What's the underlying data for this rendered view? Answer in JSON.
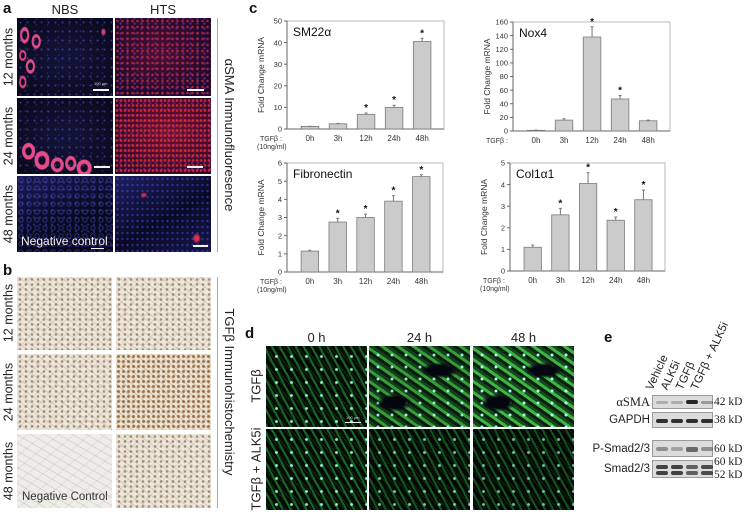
{
  "panel_a": {
    "label": "a",
    "columns": [
      "NBS",
      "HTS"
    ],
    "rows": [
      "12 months",
      "24 months",
      "48 months"
    ],
    "side_title": "αSMA Immunofluoresence",
    "negative_control": "Negative control",
    "scale_bar": "100 µm"
  },
  "panel_b": {
    "label": "b",
    "rows": [
      "12 months",
      "24 months",
      "48 months"
    ],
    "side_title": "TGFβ Immunohistochemistry",
    "negative_control": "Negative Control"
  },
  "panel_c": {
    "label": "c"
  },
  "panel_d": {
    "label": "d",
    "columns": [
      "0 h",
      "24 h",
      "48 h"
    ],
    "rows": [
      "TGFβ",
      "TGFβ + ALK5i"
    ],
    "scale_bar": "100 µm"
  },
  "panel_e": {
    "label": "e",
    "lanes": [
      "Vehicle",
      "ALK5i",
      "TGFβ",
      "TGFβ + ALK5i"
    ],
    "blots": [
      {
        "name": "αSMA",
        "kd": [
          "42 kD"
        ],
        "band_intensity": [
          0.25,
          0.25,
          0.95,
          0.35
        ]
      },
      {
        "name": "GAPDH",
        "kd": [
          "38 kD"
        ],
        "band_intensity": [
          0.9,
          0.9,
          0.9,
          0.9
        ]
      },
      {
        "name": "P-Smad2/3",
        "kd": [
          "60 kD"
        ],
        "band_intensity": [
          0.4,
          0.3,
          0.6,
          0.4
        ]
      },
      {
        "name": "Smad2/3",
        "kd": [
          "60 kD",
          "52 kD"
        ],
        "band_intensity": [
          0.8,
          0.8,
          0.65,
          0.75
        ]
      }
    ]
  },
  "chart_data": [
    {
      "type": "bar",
      "title": "SM22α",
      "categories": [
        "0h",
        "3h",
        "12h",
        "24h",
        "48h"
      ],
      "values": [
        1.2,
        2.4,
        6.8,
        10.0,
        40.5
      ],
      "errors": [
        0.1,
        0.2,
        0.6,
        1.0,
        1.5
      ],
      "significant": [
        false,
        false,
        true,
        true,
        true
      ],
      "xlabel": "TGFβ :",
      "xlabel_sub": "(10ng/ml)",
      "ylabel": "Fold Change mRNA",
      "ylim": [
        0,
        50
      ],
      "yticks": [
        0,
        10,
        20,
        30,
        40,
        50
      ]
    },
    {
      "type": "bar",
      "title": "Nox4",
      "categories": [
        "0h",
        "3h",
        "12h",
        "24h",
        "48h"
      ],
      "values": [
        1,
        16,
        138,
        47,
        15
      ],
      "errors": [
        0.3,
        2,
        15,
        5,
        1
      ],
      "significant": [
        false,
        false,
        true,
        true,
        false
      ],
      "xlabel": "TGFβ :",
      "xlabel_sub": "",
      "ylabel": "Fold Change mRNA",
      "ylim": [
        0,
        160
      ],
      "yticks": [
        0,
        20,
        40,
        60,
        80,
        100,
        120,
        140,
        160
      ]
    },
    {
      "type": "bar",
      "title": "Fibronectin",
      "categories": [
        "0h",
        "3h",
        "12h",
        "24h",
        "48h"
      ],
      "values": [
        1.15,
        2.75,
        3.0,
        3.9,
        5.25
      ],
      "errors": [
        0.05,
        0.2,
        0.18,
        0.3,
        0.1
      ],
      "significant": [
        false,
        true,
        true,
        true,
        true
      ],
      "xlabel": "TGFβ :",
      "xlabel_sub": "(10ng/ml)",
      "ylabel": "Fold Change mRNA",
      "ylim": [
        0,
        6
      ],
      "yticks": [
        0,
        1,
        2,
        3,
        4,
        5,
        6
      ]
    },
    {
      "type": "bar",
      "title": "Col1α1",
      "categories": [
        "0h",
        "3h",
        "12h",
        "24h",
        "48h"
      ],
      "values": [
        1.1,
        2.6,
        4.05,
        2.35,
        3.3
      ],
      "errors": [
        0.1,
        0.3,
        0.5,
        0.15,
        0.45
      ],
      "significant": [
        false,
        true,
        true,
        true,
        true
      ],
      "xlabel": "TGFβ :",
      "xlabel_sub": "(10ng/ml)",
      "ylabel": "Fold Change mRNA",
      "ylim": [
        0,
        5
      ],
      "yticks": [
        0,
        1,
        2,
        3,
        4,
        5
      ]
    }
  ]
}
